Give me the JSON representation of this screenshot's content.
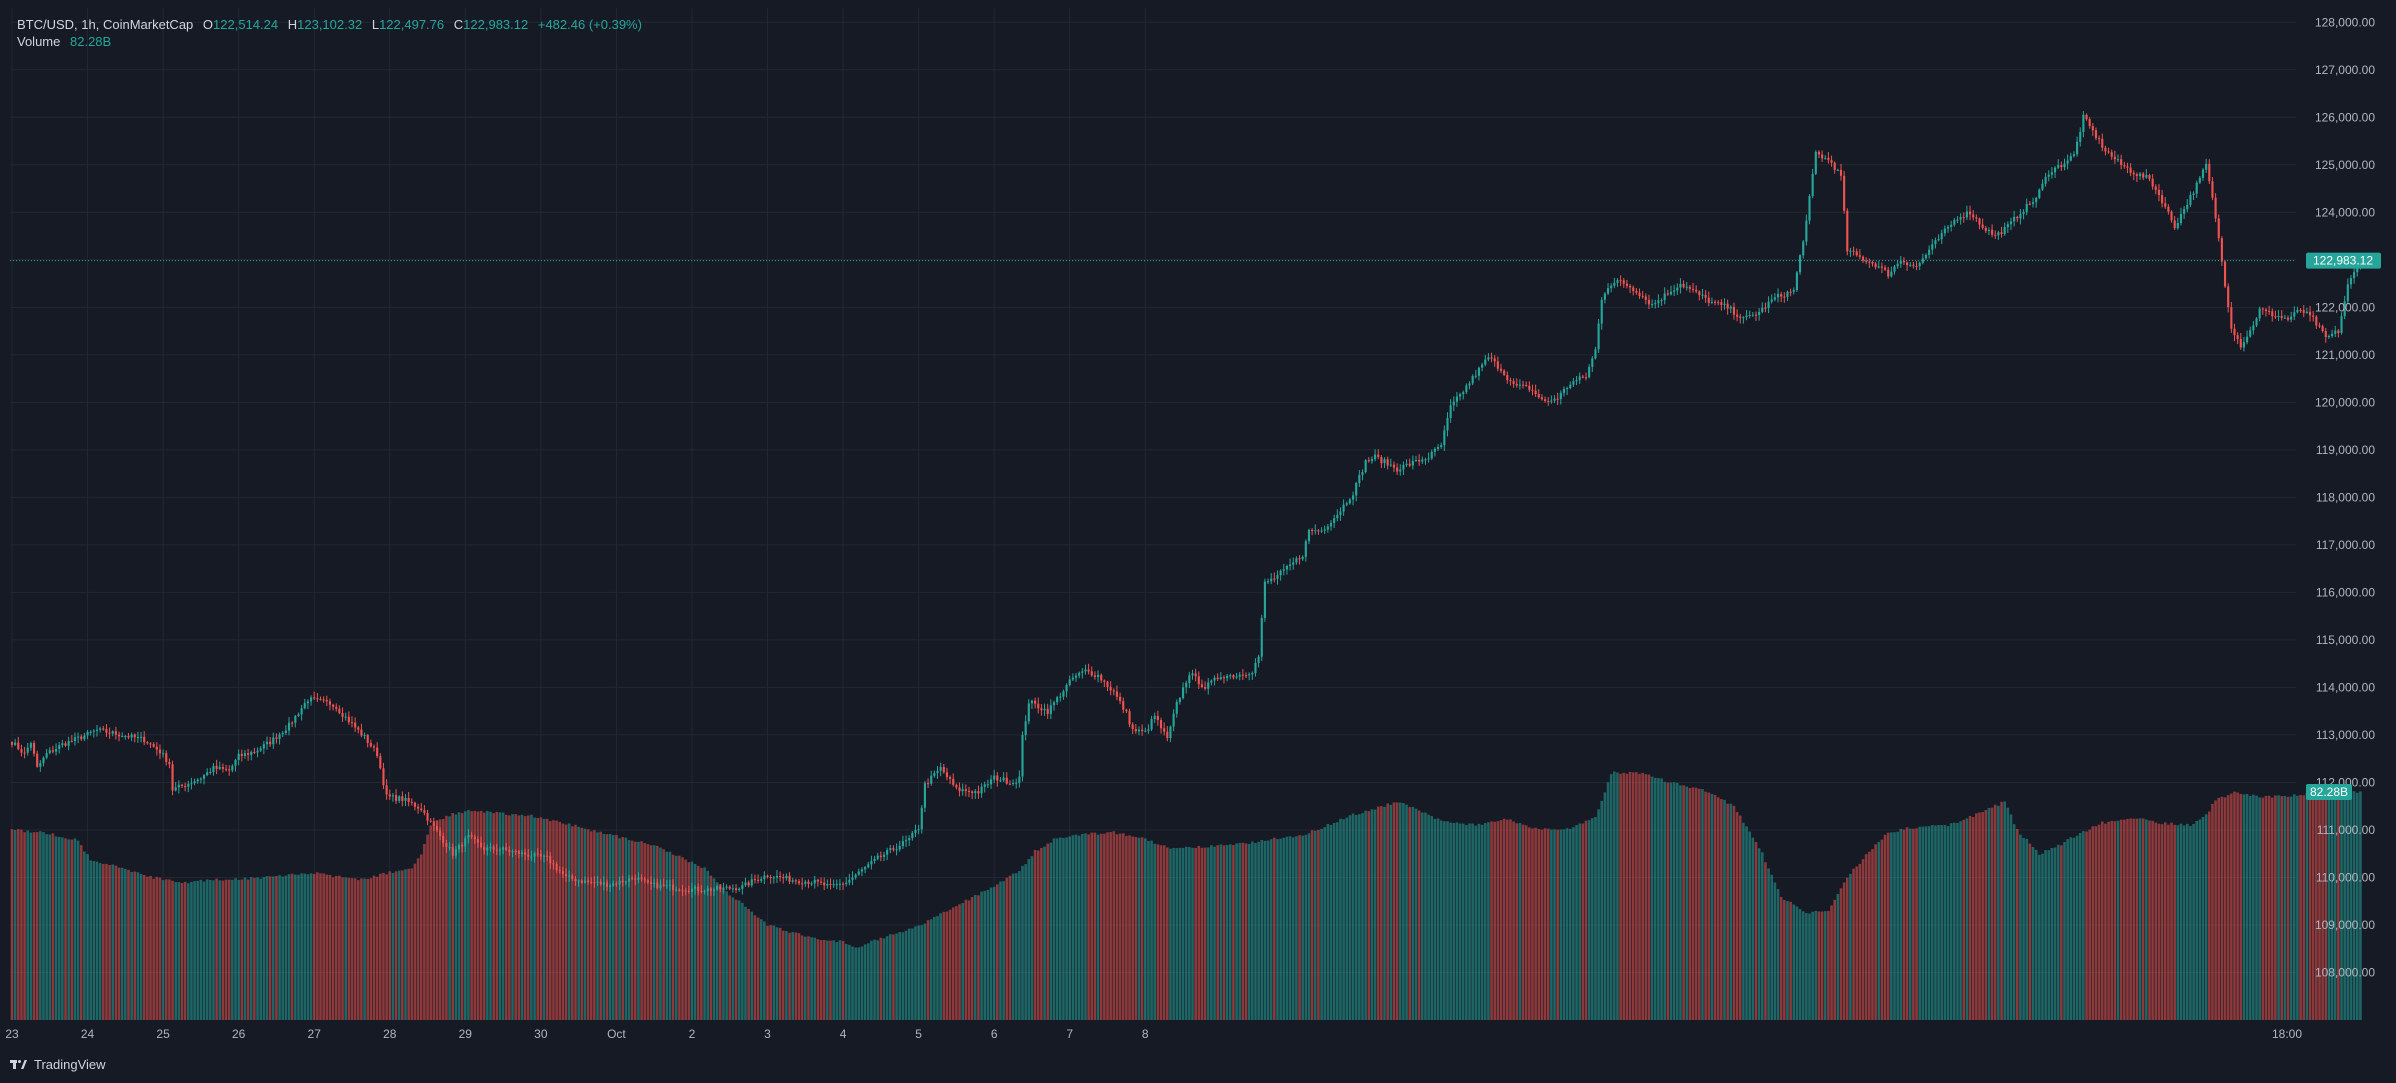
{
  "header": {
    "symbol_line": "BTC/USD, 1h, CoinMarketCap",
    "open_label": "O",
    "open": "122,514.24",
    "high_label": "H",
    "high": "123,102.32",
    "low_label": "L",
    "low": "122,497.76",
    "close_label": "C",
    "close": "122,983.12",
    "change": "+482.46 (+0.39%)",
    "volume_label": "Volume",
    "volume": "82.28B"
  },
  "branding": {
    "name": "TradingView"
  },
  "colors": {
    "background": "#161a25",
    "up": "#26a69a",
    "down": "#ef5350",
    "grid": "#232733",
    "text": "#b2b5be"
  },
  "chart_data": {
    "type": "candlestick",
    "symbol": "BTC/USD",
    "interval": "1h",
    "source": "CoinMarketCap",
    "ylim": [
      107000,
      128300
    ],
    "y_ticks": [
      "108,000.00",
      "109,000.00",
      "110,000.00",
      "111,000.00",
      "112,000.00",
      "113,000.00",
      "114,000.00",
      "115,000.00",
      "116,000.00",
      "117,000.00",
      "118,000.00",
      "119,000.00",
      "120,000.00",
      "121,000.00",
      "122,000.00",
      "123,000.00",
      "124,000.00",
      "125,000.00",
      "126,000.00",
      "127,000.00",
      "128,000.00"
    ],
    "x_ticks": [
      "23",
      "24",
      "25",
      "26",
      "27",
      "28",
      "29",
      "30",
      "Oct",
      "2",
      "3",
      "4",
      "5",
      "6",
      "7",
      "8",
      "18:00"
    ],
    "last_price_label": "122,983.12",
    "volume_label": "82.28B",
    "close_path": [
      [
        0,
        112850
      ],
      [
        4,
        112600
      ],
      [
        6,
        112850
      ],
      [
        8,
        112300
      ],
      [
        11,
        112600
      ],
      [
        16,
        112800
      ],
      [
        20,
        112900
      ],
      [
        27,
        113100
      ],
      [
        35,
        113000
      ],
      [
        42,
        112900
      ],
      [
        47,
        112650
      ],
      [
        50,
        112400
      ],
      [
        51,
        111850
      ],
      [
        55,
        111950
      ],
      [
        60,
        112100
      ],
      [
        64,
        112300
      ],
      [
        69,
        112250
      ],
      [
        72,
        112550
      ],
      [
        77,
        112650
      ],
      [
        82,
        112850
      ],
      [
        88,
        113200
      ],
      [
        94,
        113750
      ],
      [
        98,
        113700
      ],
      [
        102,
        113650
      ],
      [
        107,
        113300
      ],
      [
        112,
        112950
      ],
      [
        116,
        112600
      ],
      [
        119,
        111700
      ],
      [
        124,
        111650
      ],
      [
        130,
        111450
      ],
      [
        133,
        111150
      ],
      [
        140,
        110500
      ],
      [
        145,
        110850
      ],
      [
        150,
        110600
      ],
      [
        155,
        110600
      ],
      [
        162,
        110500
      ],
      [
        170,
        110400
      ],
      [
        176,
        110000
      ],
      [
        183,
        109900
      ],
      [
        190,
        109850
      ],
      [
        198,
        110000
      ],
      [
        202,
        109850
      ],
      [
        209,
        109800
      ],
      [
        216,
        109750
      ],
      [
        223,
        109750
      ],
      [
        232,
        109800
      ],
      [
        236,
        109950
      ],
      [
        240,
        110050
      ],
      [
        248,
        109950
      ],
      [
        255,
        109900
      ],
      [
        260,
        109800
      ],
      [
        265,
        109900
      ],
      [
        270,
        110150
      ],
      [
        275,
        110400
      ],
      [
        280,
        110600
      ],
      [
        285,
        110800
      ],
      [
        288,
        111050
      ],
      [
        290,
        111950
      ],
      [
        295,
        112300
      ],
      [
        300,
        111850
      ],
      [
        307,
        111800
      ],
      [
        312,
        112100
      ],
      [
        318,
        112000
      ],
      [
        320,
        112100
      ],
      [
        321,
        112950
      ],
      [
        323,
        113700
      ],
      [
        329,
        113500
      ],
      [
        333,
        113850
      ],
      [
        337,
        114200
      ],
      [
        341,
        114350
      ],
      [
        345,
        114250
      ],
      [
        350,
        113900
      ],
      [
        354,
        113450
      ],
      [
        356,
        113100
      ],
      [
        360,
        113050
      ],
      [
        363,
        113400
      ],
      [
        367,
        112900
      ],
      [
        370,
        113650
      ],
      [
        374,
        114300
      ],
      [
        379,
        114000
      ],
      [
        384,
        114250
      ],
      [
        389,
        114250
      ],
      [
        394,
        114350
      ],
      [
        396,
        114650
      ],
      [
        398,
        116200
      ],
      [
        401,
        116300
      ],
      [
        405,
        116500
      ],
      [
        410,
        116800
      ],
      [
        412,
        117300
      ],
      [
        416,
        117300
      ],
      [
        421,
        117650
      ],
      [
        426,
        118100
      ],
      [
        430,
        118750
      ],
      [
        433,
        118850
      ],
      [
        440,
        118600
      ],
      [
        444,
        118700
      ],
      [
        450,
        118850
      ],
      [
        454,
        119100
      ],
      [
        457,
        119900
      ],
      [
        460,
        120150
      ],
      [
        465,
        120600
      ],
      [
        469,
        120950
      ],
      [
        473,
        120700
      ],
      [
        477,
        120350
      ],
      [
        482,
        120300
      ],
      [
        487,
        120000
      ],
      [
        491,
        120100
      ],
      [
        495,
        120400
      ],
      [
        500,
        120550
      ],
      [
        503,
        121100
      ],
      [
        505,
        122200
      ],
      [
        507,
        122450
      ],
      [
        511,
        122550
      ],
      [
        516,
        122350
      ],
      [
        521,
        122050
      ],
      [
        526,
        122300
      ],
      [
        530,
        122500
      ],
      [
        535,
        122300
      ],
      [
        540,
        122100
      ],
      [
        545,
        122000
      ],
      [
        550,
        121750
      ],
      [
        555,
        121900
      ],
      [
        560,
        122200
      ],
      [
        566,
        122350
      ],
      [
        570,
        123800
      ],
      [
        573,
        125250
      ],
      [
        578,
        125050
      ],
      [
        581,
        124750
      ],
      [
        583,
        123200
      ],
      [
        587,
        123050
      ],
      [
        592,
        122900
      ],
      [
        596,
        122700
      ],
      [
        600,
        123000
      ],
      [
        605,
        122850
      ],
      [
        609,
        123200
      ],
      [
        614,
        123600
      ],
      [
        618,
        123900
      ],
      [
        622,
        124000
      ],
      [
        626,
        123700
      ],
      [
        630,
        123500
      ],
      [
        634,
        123700
      ],
      [
        638,
        124000
      ],
      [
        643,
        124300
      ],
      [
        647,
        124850
      ],
      [
        651,
        125000
      ],
      [
        655,
        125200
      ],
      [
        658,
        126000
      ],
      [
        661,
        125700
      ],
      [
        665,
        125300
      ],
      [
        670,
        125000
      ],
      [
        675,
        124800
      ],
      [
        679,
        124700
      ],
      [
        683,
        124250
      ],
      [
        687,
        123700
      ],
      [
        691,
        124200
      ],
      [
        695,
        124700
      ],
      [
        697,
        125000
      ],
      [
        700,
        123900
      ],
      [
        703,
        122500
      ],
      [
        705,
        121600
      ],
      [
        708,
        121200
      ],
      [
        711,
        121500
      ],
      [
        714,
        121950
      ],
      [
        718,
        121850
      ],
      [
        723,
        121750
      ],
      [
        727,
        121950
      ],
      [
        731,
        121750
      ],
      [
        735,
        121350
      ],
      [
        739,
        121500
      ],
      [
        742,
        122450
      ],
      [
        746,
        122983
      ]
    ],
    "volume_path": [
      [
        0,
        111000
      ],
      [
        10,
        110950
      ],
      [
        16,
        110850
      ],
      [
        21,
        110800
      ],
      [
        25,
        110350
      ],
      [
        35,
        110200
      ],
      [
        45,
        110000
      ],
      [
        55,
        109900
      ],
      [
        65,
        109950
      ],
      [
        80,
        110000
      ],
      [
        95,
        110100
      ],
      [
        110,
        109950
      ],
      [
        120,
        110100
      ],
      [
        127,
        110200
      ],
      [
        130,
        110500
      ],
      [
        133,
        111100
      ],
      [
        138,
        111300
      ],
      [
        145,
        111400
      ],
      [
        155,
        111350
      ],
      [
        165,
        111300
      ],
      [
        178,
        111100
      ],
      [
        190,
        110900
      ],
      [
        203,
        110700
      ],
      [
        213,
        110400
      ],
      [
        220,
        110200
      ],
      [
        227,
        109700
      ],
      [
        233,
        109400
      ],
      [
        240,
        109000
      ],
      [
        250,
        108800
      ],
      [
        258,
        108700
      ],
      [
        264,
        108650
      ],
      [
        268,
        108500
      ],
      [
        273,
        108650
      ],
      [
        280,
        108800
      ],
      [
        287,
        108950
      ],
      [
        293,
        109150
      ],
      [
        300,
        109400
      ],
      [
        310,
        109750
      ],
      [
        320,
        110150
      ],
      [
        325,
        110550
      ],
      [
        331,
        110800
      ],
      [
        339,
        110900
      ],
      [
        350,
        110950
      ],
      [
        358,
        110850
      ],
      [
        368,
        110600
      ],
      [
        380,
        110650
      ],
      [
        390,
        110700
      ],
      [
        400,
        110800
      ],
      [
        410,
        110900
      ],
      [
        418,
        111100
      ],
      [
        425,
        111300
      ],
      [
        433,
        111450
      ],
      [
        440,
        111600
      ],
      [
        447,
        111400
      ],
      [
        454,
        111200
      ],
      [
        466,
        111100
      ],
      [
        474,
        111250
      ],
      [
        483,
        111050
      ],
      [
        493,
        111000
      ],
      [
        503,
        111250
      ],
      [
        508,
        112200
      ],
      [
        517,
        112200
      ],
      [
        527,
        112000
      ],
      [
        533,
        111900
      ],
      [
        539,
        111800
      ],
      [
        547,
        111500
      ],
      [
        556,
        110500
      ],
      [
        562,
        109600
      ],
      [
        570,
        109250
      ],
      [
        577,
        109300
      ],
      [
        583,
        110000
      ],
      [
        590,
        110550
      ],
      [
        596,
        110950
      ],
      [
        604,
        111050
      ],
      [
        615,
        111100
      ],
      [
        625,
        111350
      ],
      [
        633,
        111600
      ],
      [
        637,
        111000
      ],
      [
        644,
        110500
      ],
      [
        651,
        110700
      ],
      [
        656,
        110900
      ],
      [
        664,
        111150
      ],
      [
        674,
        111250
      ],
      [
        683,
        111150
      ],
      [
        692,
        111100
      ],
      [
        697,
        111300
      ],
      [
        700,
        111650
      ],
      [
        707,
        111800
      ],
      [
        714,
        111700
      ],
      [
        723,
        111700
      ],
      [
        732,
        111800
      ],
      [
        741,
        111800
      ],
      [
        746,
        111800
      ]
    ]
  }
}
